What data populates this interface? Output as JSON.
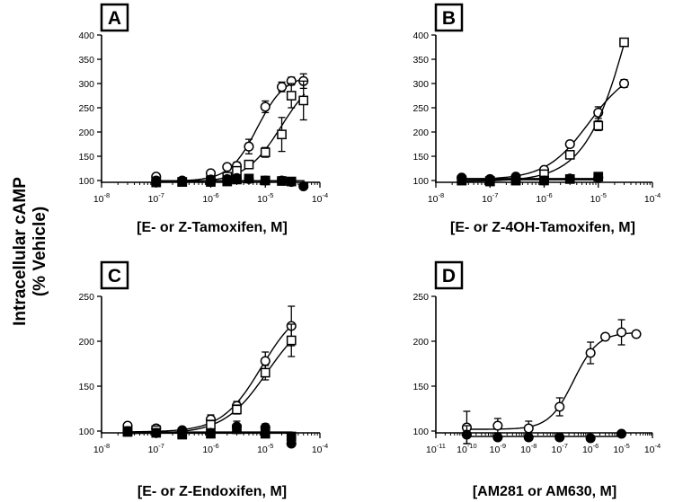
{
  "figure": {
    "ylabel_line1": "Intracellular cAMP",
    "ylabel_line2": "(% Vehicle)"
  },
  "chart_data": [
    {
      "type": "line",
      "panel": "A",
      "xlabel": "[E- or Z-Tamoxifen, M]",
      "x_scale": "log",
      "xlim": [
        1e-08,
        0.0001
      ],
      "ylim": [
        100,
        400
      ],
      "xtick_labels": [
        "10-8",
        "10-7",
        "10-6",
        "10-5",
        "10-4"
      ],
      "ytick_labels": [
        "100",
        "150",
        "200",
        "250",
        "300",
        "350",
        "400"
      ],
      "series": [
        {
          "marker": "open-circle",
          "fit": "sigmoid",
          "x": [
            1e-07,
            3e-07,
            1e-06,
            2e-06,
            3e-06,
            5e-06,
            1e-05,
            2e-05,
            3e-05,
            5e-05
          ],
          "y": [
            108,
            100,
            115,
            128,
            130,
            170,
            252,
            293,
            305,
            305
          ],
          "err": [
            3,
            3,
            5,
            6,
            8,
            15,
            12,
            10,
            8,
            15
          ]
        },
        {
          "marker": "open-square",
          "fit": "sigmoid",
          "x": [
            1e-07,
            3e-07,
            1e-06,
            2e-06,
            3e-06,
            5e-06,
            1e-05,
            2e-05,
            3e-05,
            5e-05
          ],
          "y": [
            98,
            97,
            100,
            108,
            120,
            133,
            158,
            195,
            275,
            265
          ],
          "err": [
            3,
            3,
            4,
            5,
            5,
            8,
            10,
            35,
            25,
            40
          ]
        },
        {
          "marker": "filled-circle",
          "fit": "flat",
          "x": [
            1e-07,
            3e-07,
            1e-06,
            2e-06,
            3e-06,
            5e-06,
            1e-05,
            2e-05,
            3e-05,
            5e-05
          ],
          "y": [
            100,
            98,
            102,
            103,
            105,
            103,
            100,
            100,
            97,
            88
          ],
          "err": [
            2,
            2,
            2,
            2,
            2,
            2,
            2,
            2,
            2,
            2
          ]
        },
        {
          "marker": "filled-square",
          "fit": "flat",
          "x": [
            1e-07,
            3e-07,
            1e-06,
            2e-06,
            3e-06,
            5e-06,
            1e-05,
            2e-05,
            3e-05
          ],
          "y": [
            96,
            97,
            97,
            98,
            102,
            104,
            100,
            99,
            98
          ],
          "err": [
            2,
            2,
            2,
            2,
            2,
            2,
            2,
            2,
            2
          ]
        }
      ]
    },
    {
      "type": "line",
      "panel": "B",
      "xlabel": "[E- or Z-4OH-Tamoxifen, M]",
      "x_scale": "log",
      "xlim": [
        1e-08,
        0.0001
      ],
      "ylim": [
        100,
        400
      ],
      "xtick_labels": [
        "10-8",
        "10-7",
        "10-6",
        "10-5",
        "10-4"
      ],
      "ytick_labels": [
        "100",
        "150",
        "200",
        "250",
        "300",
        "350",
        "400"
      ],
      "series": [
        {
          "marker": "open-circle",
          "fit": "sigmoid",
          "x": [
            3e-08,
            1e-07,
            3e-07,
            1e-06,
            3e-06,
            1e-05,
            3e-05
          ],
          "y": [
            105,
            103,
            106,
            122,
            175,
            240,
            300
          ],
          "err": [
            3,
            3,
            3,
            5,
            6,
            12,
            8
          ]
        },
        {
          "marker": "open-square",
          "fit": "sigmoid",
          "x": [
            3e-08,
            1e-07,
            3e-07,
            1e-06,
            3e-06,
            1e-05,
            3e-05
          ],
          "y": [
            100,
            99,
            100,
            113,
            153,
            213,
            385
          ],
          "err": [
            3,
            3,
            3,
            5,
            6,
            10,
            6
          ]
        },
        {
          "marker": "filled-circle",
          "fit": "flat",
          "x": [
            3e-08,
            1e-07,
            3e-07,
            1e-06,
            3e-06,
            1e-05
          ],
          "y": [
            106,
            101,
            108,
            100,
            104,
            106
          ],
          "err": [
            2,
            2,
            2,
            2,
            2,
            6
          ]
        },
        {
          "marker": "filled-square",
          "fit": "flat",
          "x": [
            3e-08,
            1e-07,
            3e-07,
            1e-06,
            3e-06,
            1e-05
          ],
          "y": [
            100,
            98,
            100,
            100,
            103,
            108
          ],
          "err": [
            2,
            2,
            2,
            2,
            2,
            4
          ]
        }
      ]
    },
    {
      "type": "line",
      "panel": "C",
      "xlabel": "[E- or Z-Endoxifen, M]",
      "x_scale": "log",
      "xlim": [
        1e-08,
        0.0001
      ],
      "ylim": [
        100,
        250
      ],
      "xtick_labels": [
        "10-8",
        "10-7",
        "10-6",
        "10-5",
        "10-4"
      ],
      "ytick_labels": [
        "100",
        "150",
        "200",
        "250"
      ],
      "series": [
        {
          "marker": "open-circle",
          "fit": "sigmoid",
          "x": [
            3e-08,
            1e-07,
            3e-07,
            1e-06,
            3e-06,
            1e-05,
            3e-05
          ],
          "y": [
            106,
            103,
            100,
            113,
            128,
            178,
            217
          ],
          "err": [
            2,
            3,
            3,
            5,
            5,
            10,
            22
          ]
        },
        {
          "marker": "open-square",
          "fit": "sigmoid",
          "x": [
            3e-08,
            1e-07,
            3e-07,
            1e-06,
            3e-06,
            1e-05,
            3e-05
          ],
          "y": [
            100,
            101,
            98,
            107,
            124,
            165,
            201
          ],
          "err": [
            3,
            3,
            3,
            5,
            5,
            8,
            18
          ]
        },
        {
          "marker": "filled-circle",
          "fit": "flat",
          "x": [
            3e-08,
            1e-07,
            3e-07,
            1e-06,
            3e-06,
            1e-05,
            3e-05
          ],
          "y": [
            100,
            98,
            101,
            98,
            105,
            104,
            86
          ],
          "err": [
            2,
            2,
            2,
            2,
            6,
            4,
            3
          ]
        },
        {
          "marker": "filled-square",
          "fit": "flat",
          "x": [
            3e-08,
            1e-07,
            3e-07,
            1e-06,
            3e-06,
            1e-05,
            3e-05
          ],
          "y": [
            99,
            98,
            96,
            97,
            102,
            97,
            94
          ],
          "err": [
            2,
            2,
            2,
            2,
            3,
            3,
            2
          ]
        }
      ]
    },
    {
      "type": "line",
      "panel": "D",
      "xlabel": "[AM281 or AM630, M]",
      "x_scale": "log",
      "xlim": [
        1e-11,
        0.0001
      ],
      "ylim": [
        100,
        250
      ],
      "xtick_labels": [
        "10-11",
        "10-10",
        "10-9",
        "10-8",
        "10-7",
        "10-6",
        "10-5",
        "10-4"
      ],
      "ytick_labels": [
        "100",
        "150",
        "200",
        "250"
      ],
      "series": [
        {
          "marker": "open-circle",
          "fit": "sigmoid",
          "x": [
            1e-10,
            1e-09,
            1e-08,
            1e-07,
            1e-06,
            3e-06,
            1e-05,
            3e-05
          ],
          "y": [
            104,
            106,
            103,
            127,
            187,
            205,
            210,
            208
          ],
          "err": [
            18,
            8,
            8,
            10,
            12,
            3,
            14,
            3
          ]
        },
        {
          "marker": "filled-circle",
          "fit": "flat",
          "x": [
            1e-10,
            1e-09,
            1e-08,
            1e-07,
            1e-06,
            1e-05
          ],
          "y": [
            96,
            93,
            93,
            93,
            92,
            97
          ],
          "err": [
            10,
            2,
            2,
            2,
            2,
            2
          ]
        }
      ]
    }
  ]
}
